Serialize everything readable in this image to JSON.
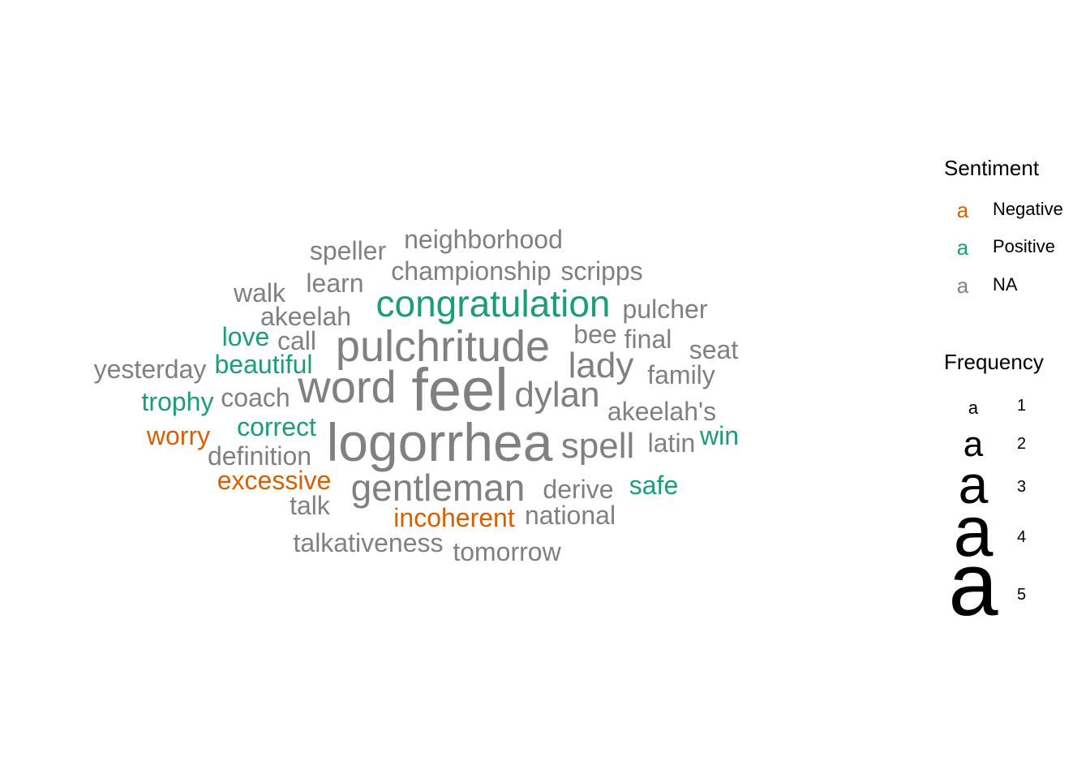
{
  "chart_data": {
    "type": "wordcloud",
    "legend_placement": "right",
    "sentiment_legend": {
      "title": "Sentiment",
      "glyph": "a",
      "items": [
        {
          "label": "Negative",
          "color": "#D95F02"
        },
        {
          "label": "Positive",
          "color": "#1B9E77"
        },
        {
          "label": "NA",
          "color": "#808080"
        }
      ]
    },
    "frequency_legend": {
      "title": "Frequency",
      "glyph": "a",
      "items": [
        {
          "label": "1",
          "value": 1
        },
        {
          "label": "2",
          "value": 2
        },
        {
          "label": "3",
          "value": 3
        },
        {
          "label": "4",
          "value": 4
        },
        {
          "label": "5",
          "value": 5
        }
      ]
    },
    "words": [
      {
        "word": "feel",
        "frequency": 5,
        "sentiment": "NA"
      },
      {
        "word": "logorrhea",
        "frequency": 5,
        "sentiment": "NA"
      },
      {
        "word": "pulchritude",
        "frequency": 4,
        "sentiment": "NA"
      },
      {
        "word": "word",
        "frequency": 4,
        "sentiment": "NA"
      },
      {
        "word": "gentleman",
        "frequency": 3,
        "sentiment": "NA"
      },
      {
        "word": "congratulation",
        "frequency": 3,
        "sentiment": "Positive"
      },
      {
        "word": "lady",
        "frequency": 3,
        "sentiment": "NA"
      },
      {
        "word": "dylan",
        "frequency": 3,
        "sentiment": "NA"
      },
      {
        "word": "spell",
        "frequency": 3,
        "sentiment": "NA"
      },
      {
        "word": "neighborhood",
        "frequency": 2,
        "sentiment": "NA"
      },
      {
        "word": "speller",
        "frequency": 2,
        "sentiment": "NA"
      },
      {
        "word": "championship",
        "frequency": 2,
        "sentiment": "NA"
      },
      {
        "word": "scripps",
        "frequency": 2,
        "sentiment": "NA"
      },
      {
        "word": "learn",
        "frequency": 2,
        "sentiment": "NA"
      },
      {
        "word": "walk",
        "frequency": 2,
        "sentiment": "NA"
      },
      {
        "word": "akeelah",
        "frequency": 2,
        "sentiment": "NA"
      },
      {
        "word": "pulcher",
        "frequency": 2,
        "sentiment": "NA"
      },
      {
        "word": "love",
        "frequency": 2,
        "sentiment": "Positive"
      },
      {
        "word": "call",
        "frequency": 2,
        "sentiment": "NA"
      },
      {
        "word": "bee",
        "frequency": 2,
        "sentiment": "NA"
      },
      {
        "word": "final",
        "frequency": 2,
        "sentiment": "NA"
      },
      {
        "word": "seat",
        "frequency": 2,
        "sentiment": "NA"
      },
      {
        "word": "yesterday",
        "frequency": 2,
        "sentiment": "NA"
      },
      {
        "word": "beautiful",
        "frequency": 2,
        "sentiment": "Positive"
      },
      {
        "word": "family",
        "frequency": 2,
        "sentiment": "NA"
      },
      {
        "word": "trophy",
        "frequency": 2,
        "sentiment": "Positive"
      },
      {
        "word": "coach",
        "frequency": 2,
        "sentiment": "NA"
      },
      {
        "word": "akeelah's",
        "frequency": 2,
        "sentiment": "NA"
      },
      {
        "word": "worry",
        "frequency": 2,
        "sentiment": "Negative"
      },
      {
        "word": "correct",
        "frequency": 2,
        "sentiment": "Positive"
      },
      {
        "word": "win",
        "frequency": 2,
        "sentiment": "Positive"
      },
      {
        "word": "latin",
        "frequency": 2,
        "sentiment": "NA"
      },
      {
        "word": "definition",
        "frequency": 2,
        "sentiment": "NA"
      },
      {
        "word": "excessive",
        "frequency": 2,
        "sentiment": "Negative"
      },
      {
        "word": "derive",
        "frequency": 2,
        "sentiment": "NA"
      },
      {
        "word": "safe",
        "frequency": 2,
        "sentiment": "Positive"
      },
      {
        "word": "talk",
        "frequency": 2,
        "sentiment": "NA"
      },
      {
        "word": "incoherent",
        "frequency": 2,
        "sentiment": "Negative"
      },
      {
        "word": "national",
        "frequency": 2,
        "sentiment": "NA"
      },
      {
        "word": "talkativeness",
        "frequency": 2,
        "sentiment": "NA"
      },
      {
        "word": "tomorrow",
        "frequency": 2,
        "sentiment": "NA"
      }
    ]
  }
}
